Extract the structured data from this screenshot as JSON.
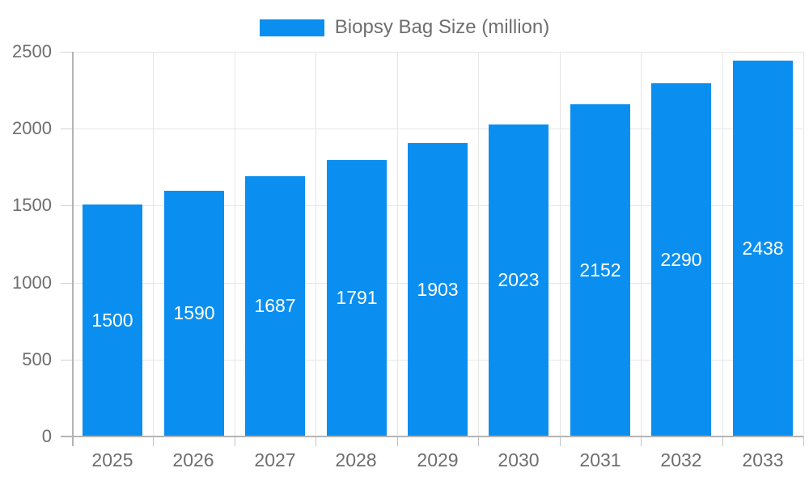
{
  "chart_data": {
    "type": "bar",
    "title": "",
    "categories": [
      "2025",
      "2026",
      "2027",
      "2028",
      "2029",
      "2030",
      "2031",
      "2032",
      "2033"
    ],
    "series": [
      {
        "name": "Biopsy Bag Size (million)",
        "values": [
          1500,
          1590,
          1687,
          1791,
          1903,
          2023,
          2152,
          2290,
          2438
        ]
      }
    ],
    "data_labels": [
      "1500",
      "1590",
      "1687",
      "1791",
      "1903",
      "2023",
      "2152",
      "2290",
      "2438"
    ],
    "xlabel": "",
    "ylabel": "",
    "ylim": [
      0,
      2500
    ],
    "yticks": [
      0,
      500,
      1000,
      1500,
      2000,
      2500
    ],
    "ytick_labels": [
      "0",
      "500",
      "1000",
      "1500",
      "2000",
      "2500"
    ],
    "grid": true,
    "legend_position": "top",
    "colors": {
      "bar": "#0a8ff0",
      "bar_value_text": "#ffffff",
      "axis_line": "#b3b3b3",
      "gridline": "#e6e6e6",
      "tick_text": "#6e6e6e",
      "legend_text": "#6e6e6e",
      "background": "#ffffff"
    }
  }
}
